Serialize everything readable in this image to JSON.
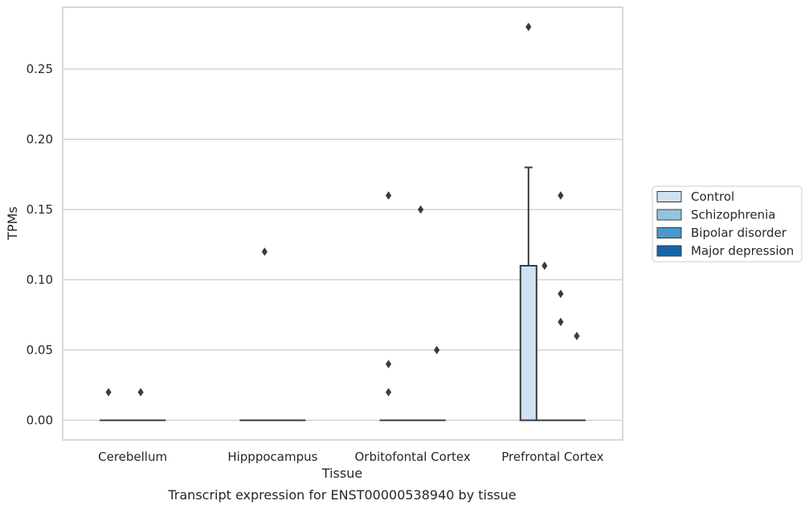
{
  "caption": "Transcript expression for ENST00000538940 by tissue",
  "chart_data": {
    "type": "box",
    "xlabel": "Tissue",
    "ylabel": "TPMs",
    "ylim": [
      -0.014,
      0.294
    ],
    "yticks": [
      0.0,
      0.05,
      0.1,
      0.15,
      0.2,
      0.25
    ],
    "ytick_labels": [
      "0.00",
      "0.05",
      "0.10",
      "0.15",
      "0.20",
      "0.25"
    ],
    "grid": "horizontal",
    "legend_position": "right",
    "categories": [
      "Cerebellum",
      "Hipppocampus",
      "Orbitofontal Cortex",
      "Prefrontal Cortex"
    ],
    "series": [
      {
        "name": "Control",
        "color": "#d0e1f2",
        "boxes": [
          {
            "q1": 0,
            "median": 0,
            "q3": 0,
            "whisker_low": 0,
            "whisker_high": 0,
            "outliers": [
              0.02
            ]
          },
          {
            "q1": 0,
            "median": 0,
            "q3": 0,
            "whisker_low": 0,
            "whisker_high": 0,
            "outliers": []
          },
          {
            "q1": 0,
            "median": 0,
            "q3": 0,
            "whisker_low": 0,
            "whisker_high": 0,
            "outliers": [
              0.16,
              0.04,
              0.02
            ]
          },
          {
            "q1": 0,
            "median": 0,
            "q3": 0.11,
            "whisker_low": 0,
            "whisker_high": 0.18,
            "outliers": [
              0.28
            ]
          }
        ]
      },
      {
        "name": "Schizophrenia",
        "color": "#94c4df",
        "boxes": [
          {
            "q1": 0,
            "median": 0,
            "q3": 0,
            "whisker_low": 0,
            "whisker_high": 0,
            "outliers": []
          },
          {
            "q1": 0,
            "median": 0,
            "q3": 0,
            "whisker_low": 0,
            "whisker_high": 0,
            "outliers": [
              0.12
            ]
          },
          {
            "q1": 0,
            "median": 0,
            "q3": 0,
            "whisker_low": 0,
            "whisker_high": 0,
            "outliers": []
          },
          {
            "q1": 0,
            "median": 0,
            "q3": 0,
            "whisker_low": 0,
            "whisker_high": 0,
            "outliers": [
              0.11
            ]
          }
        ]
      },
      {
        "name": "Bipolar disorder",
        "color": "#4a98c9",
        "boxes": [
          {
            "q1": 0,
            "median": 0,
            "q3": 0,
            "whisker_low": 0,
            "whisker_high": 0,
            "outliers": [
              0.02
            ]
          },
          {
            "q1": 0,
            "median": 0,
            "q3": 0,
            "whisker_low": 0,
            "whisker_high": 0,
            "outliers": []
          },
          {
            "q1": 0,
            "median": 0,
            "q3": 0,
            "whisker_low": 0,
            "whisker_high": 0,
            "outliers": [
              0.15
            ]
          },
          {
            "q1": 0,
            "median": 0,
            "q3": 0,
            "whisker_low": 0,
            "whisker_high": 0,
            "outliers": [
              0.16,
              0.09,
              0.07
            ]
          }
        ]
      },
      {
        "name": "Major depression",
        "color": "#1764ab",
        "boxes": [
          {
            "q1": 0,
            "median": 0,
            "q3": 0,
            "whisker_low": 0,
            "whisker_high": 0,
            "outliers": []
          },
          {
            "q1": 0,
            "median": 0,
            "q3": 0,
            "whisker_low": 0,
            "whisker_high": 0,
            "outliers": []
          },
          {
            "q1": 0,
            "median": 0,
            "q3": 0,
            "whisker_low": 0,
            "whisker_high": 0,
            "outliers": [
              0.05
            ]
          },
          {
            "q1": 0,
            "median": 0,
            "q3": 0,
            "whisker_low": 0,
            "whisker_high": 0,
            "outliers": [
              0.06
            ]
          }
        ]
      }
    ]
  }
}
